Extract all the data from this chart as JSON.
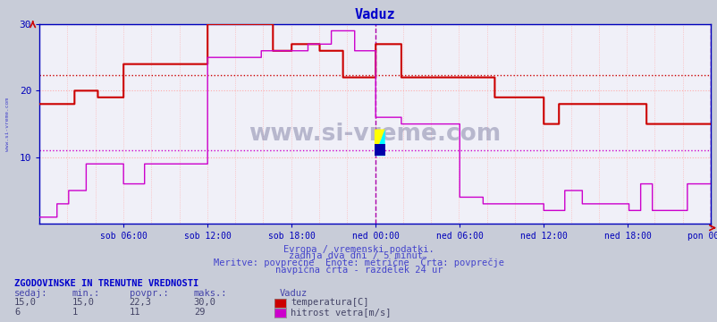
{
  "title": "Vaduz",
  "title_color": "#0000cc",
  "bg_color": "#c8ccd8",
  "plot_bg_color": "#f0f0f8",
  "grid_color_h": "#ff9999",
  "grid_color_v": "#ffaaaa",
  "xlabel_color": "#0000bb",
  "ylabel_color": "#0000bb",
  "ylim": [
    0,
    30
  ],
  "yticks": [
    10,
    20,
    30
  ],
  "x_labels": [
    "sob 06:00",
    "sob 12:00",
    "sob 18:00",
    "ned 00:00",
    "ned 06:00",
    "ned 12:00",
    "ned 18:00",
    "pon 00:00"
  ],
  "avg_line_temp": 22.3,
  "avg_line_wind": 11.0,
  "avg_line_temp_color": "#cc0000",
  "avg_line_wind_color": "#cc00cc",
  "temp_color": "#cc0000",
  "wind_color": "#cc00cc",
  "watermark": "www.si-vreme.com",
  "subtitle1": "Evropa / vremenski podatki.",
  "subtitle2": "zadnja dva dni / 5 minut.",
  "subtitle3": "Meritve: povprečne  Enote: metrične  Črta: povprečje",
  "subtitle4": "navpična črta - razdelek 24 ur",
  "legend_title": "ZGODOVINSKE IN TRENUTNE VREDNOSTI",
  "col_headers": [
    "sedaj:",
    "min.:",
    "povpr.:",
    "maks.:"
  ],
  "row1": [
    "15,0",
    "15,0",
    "22,3",
    "30,0"
  ],
  "row2": [
    "6",
    "1",
    "11",
    "29"
  ],
  "legend_location": "Vaduz",
  "legend_label1": "temperatura[C]",
  "legend_label2": "hitrost vetra[m/s]",
  "temp_color_swatch": "#cc0000",
  "wind_color_swatch": "#cc00cc",
  "n_points": 576,
  "spine_color": "#0000bb",
  "left_label": "www.si-vreme.com",
  "divider_color": "#aa00aa"
}
